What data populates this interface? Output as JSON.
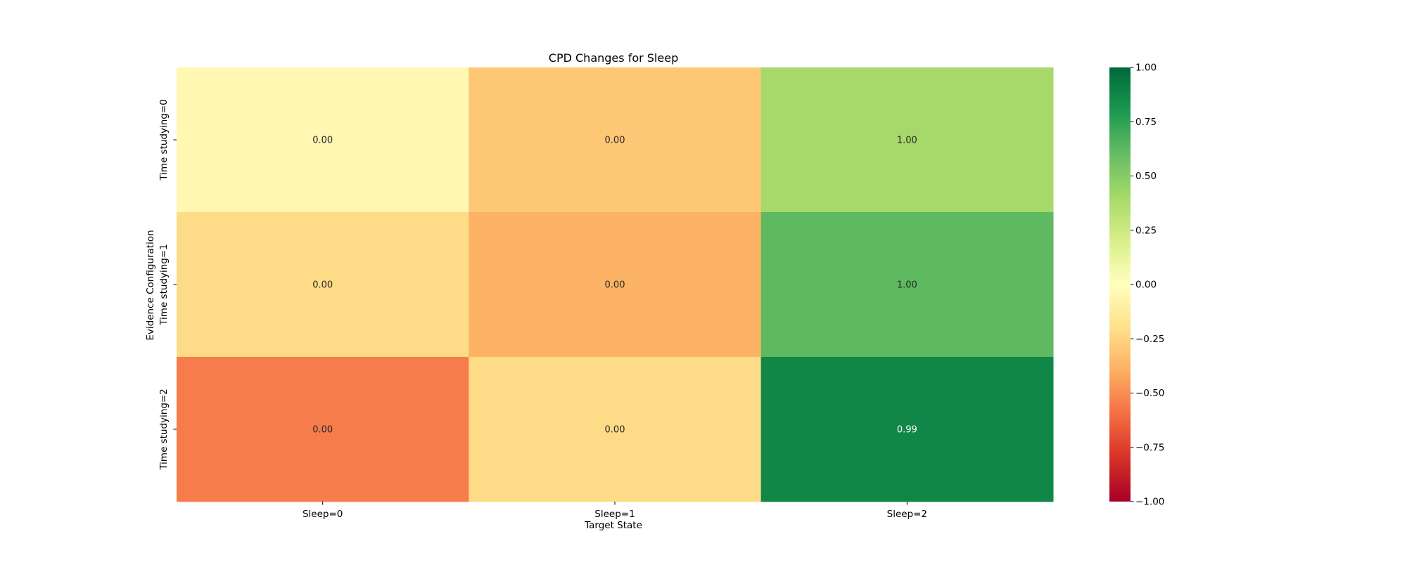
{
  "chart_data": {
    "type": "heatmap",
    "title": "CPD Changes for Sleep",
    "xlabel": "Target State",
    "ylabel": "Evidence Configuration",
    "x_categories": [
      "Sleep=0",
      "Sleep=1",
      "Sleep=2"
    ],
    "y_categories": [
      "Time studying=0",
      "Time studying=1",
      "Time studying=2"
    ],
    "annotations": [
      [
        "0.00",
        "0.00",
        "1.00"
      ],
      [
        "0.00",
        "0.00",
        "1.00"
      ],
      [
        "0.00",
        "0.00",
        "0.99"
      ]
    ],
    "values": [
      [
        -0.05,
        -0.3,
        0.4
      ],
      [
        -0.22,
        -0.38,
        0.62
      ],
      [
        -0.55,
        -0.22,
        0.87
      ]
    ],
    "colorbar": {
      "colormap": "RdYlGn",
      "range": [
        -1,
        1
      ],
      "tick_values": [
        1.0,
        0.75,
        0.5,
        0.25,
        0.0,
        -0.25,
        -0.5,
        -0.75,
        -1.0
      ],
      "tick_labels": [
        "1.00",
        "0.75",
        "0.50",
        "0.25",
        "0.00",
        "−0.25",
        "−0.50",
        "−0.75",
        "−1.00"
      ]
    }
  }
}
